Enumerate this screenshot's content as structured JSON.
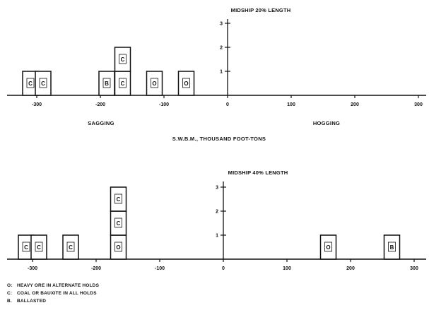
{
  "chart_data": [
    {
      "type": "bar",
      "title": "MIDSHIP 20% LENGTH",
      "x_tick_labels": [
        "-300",
        "-200",
        "-100",
        "0",
        "100",
        "200",
        "300"
      ],
      "y_tick_labels": [
        "1",
        "2",
        "3"
      ],
      "xlim": [
        -340,
        300
      ],
      "ylim": [
        0,
        3
      ],
      "x_side_labels": {
        "negative": "SAGGING",
        "positive": "HOGGING"
      },
      "xlabel": "S.W.B.M., THOUSAND FOOT-TONS",
      "blocks": [
        {
          "x": -310,
          "count": 1,
          "label": "C"
        },
        {
          "x": -290,
          "count": 1,
          "label": "C"
        },
        {
          "x": -190,
          "count": 1,
          "label": "B"
        },
        {
          "x": -165,
          "count": 1,
          "label": "C"
        },
        {
          "x": -165,
          "count": 1,
          "label": "C"
        },
        {
          "x": -115,
          "count": 1,
          "label": "O"
        },
        {
          "x": -65,
          "count": 1,
          "label": "O"
        }
      ]
    },
    {
      "type": "bar",
      "title": "MIDSHIP 40% LENGTH",
      "x_tick_labels": [
        "-300",
        "-200",
        "-100",
        "0",
        "100",
        "200",
        "300"
      ],
      "y_tick_labels": [
        "1",
        "2",
        "3"
      ],
      "xlim": [
        -340,
        300
      ],
      "ylim": [
        0,
        3
      ],
      "blocks": [
        {
          "x": -310,
          "count": 1,
          "label": "C"
        },
        {
          "x": -290,
          "count": 1,
          "label": "C"
        },
        {
          "x": -240,
          "count": 1,
          "label": "C"
        },
        {
          "x": -165,
          "count": 1,
          "label": "O"
        },
        {
          "x": -165,
          "count": 1,
          "label": "C"
        },
        {
          "x": -165,
          "count": 1,
          "label": "C"
        },
        {
          "x": 165,
          "count": 1,
          "label": "O"
        },
        {
          "x": 265,
          "count": 1,
          "label": "B"
        }
      ]
    }
  ],
  "legend": [
    {
      "code": "O:",
      "text": "HEAVY ORE IN ALTERNATE HOLDS"
    },
    {
      "code": "C:",
      "text": "COAL OR BAUXITE IN ALL HOLDS"
    },
    {
      "code": "B.",
      "text": "BALLASTED"
    }
  ]
}
